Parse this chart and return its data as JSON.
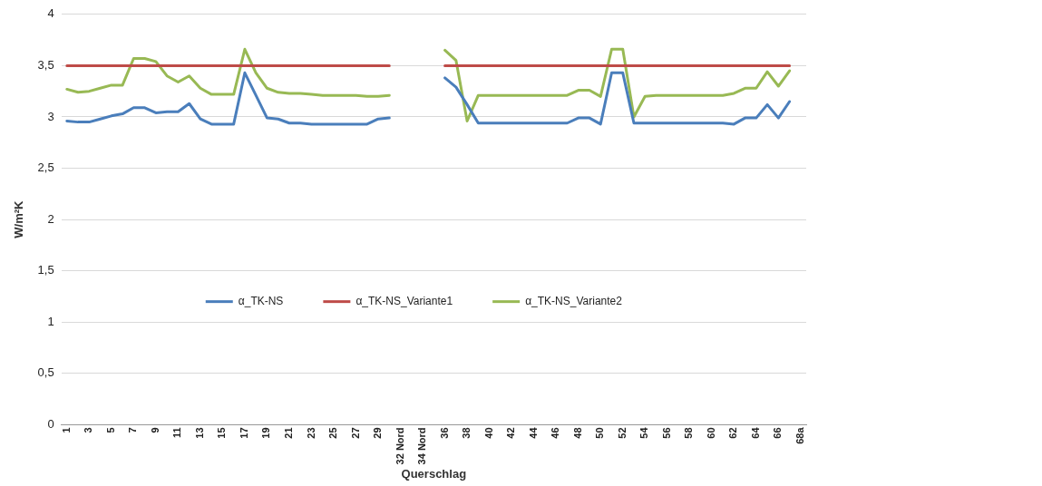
{
  "chart_data": {
    "type": "line",
    "xlabel": "Querschlag",
    "ylabel": "W/m²K",
    "categories": [
      "1",
      null,
      "3",
      null,
      "5",
      null,
      "7",
      null,
      "9",
      null,
      "11",
      null,
      "13",
      null,
      "15",
      null,
      "17",
      null,
      "19",
      null,
      "21",
      null,
      "23",
      null,
      "25",
      null,
      "27",
      null,
      "29",
      null,
      "32 Nord",
      null,
      "34 Nord",
      null,
      "36",
      null,
      "38",
      null,
      "40",
      null,
      "42",
      null,
      "44",
      null,
      "46",
      null,
      "48",
      null,
      "50",
      null,
      "52",
      null,
      "54",
      null,
      "56",
      null,
      "58",
      null,
      "60",
      null,
      "62",
      null,
      "64",
      null,
      "66",
      null,
      "68a"
    ],
    "series": [
      {
        "name": "α_TK-NS",
        "color": "#4a7ebb",
        "values": [
          2.96,
          2.95,
          2.95,
          2.98,
          3.01,
          3.03,
          3.09,
          3.09,
          3.04,
          3.05,
          3.05,
          3.13,
          2.98,
          2.93,
          2.93,
          2.93,
          3.43,
          3.21,
          2.99,
          2.98,
          2.94,
          2.94,
          2.93,
          2.93,
          2.93,
          2.93,
          2.93,
          2.93,
          2.98,
          2.99,
          null,
          null,
          null,
          null,
          3.38,
          3.29,
          3.12,
          2.94,
          2.94,
          2.94,
          2.94,
          2.94,
          2.94,
          2.94,
          2.94,
          2.94,
          2.99,
          2.99,
          2.93,
          3.43,
          3.43,
          2.94,
          2.94,
          2.94,
          2.94,
          2.94,
          2.94,
          2.94,
          2.94,
          2.94,
          2.93,
          2.99,
          2.99,
          3.12,
          2.99,
          3.15,
          null
        ]
      },
      {
        "name": "α_TK-NS_Variante1",
        "color": "#be4b48",
        "values": [
          3.5,
          3.5,
          3.5,
          3.5,
          3.5,
          3.5,
          3.5,
          3.5,
          3.5,
          3.5,
          3.5,
          3.5,
          3.5,
          3.5,
          3.5,
          3.5,
          3.5,
          3.5,
          3.5,
          3.5,
          3.5,
          3.5,
          3.5,
          3.5,
          3.5,
          3.5,
          3.5,
          3.5,
          3.5,
          3.5,
          null,
          null,
          null,
          null,
          3.5,
          3.5,
          3.5,
          3.5,
          3.5,
          3.5,
          3.5,
          3.5,
          3.5,
          3.5,
          3.5,
          3.5,
          3.5,
          3.5,
          3.5,
          3.5,
          3.5,
          3.5,
          3.5,
          3.5,
          3.5,
          3.5,
          3.5,
          3.5,
          3.5,
          3.5,
          3.5,
          3.5,
          3.5,
          3.5,
          3.5,
          3.5,
          null
        ]
      },
      {
        "name": "α_TK-NS_Variante2",
        "color": "#98b954",
        "values": [
          3.27,
          3.24,
          3.25,
          3.28,
          3.31,
          3.31,
          3.57,
          3.57,
          3.54,
          3.4,
          3.34,
          3.4,
          3.28,
          3.22,
          3.22,
          3.22,
          3.66,
          3.43,
          3.28,
          3.24,
          3.23,
          3.23,
          3.22,
          3.21,
          3.21,
          3.21,
          3.21,
          3.2,
          3.2,
          3.21,
          null,
          null,
          null,
          null,
          3.65,
          3.55,
          2.96,
          3.21,
          3.21,
          3.21,
          3.21,
          3.21,
          3.21,
          3.21,
          3.21,
          3.21,
          3.26,
          3.26,
          3.2,
          3.66,
          3.66,
          3.0,
          3.2,
          3.21,
          3.21,
          3.21,
          3.21,
          3.21,
          3.21,
          3.21,
          3.23,
          3.28,
          3.28,
          3.44,
          3.3,
          3.45,
          null
        ]
      }
    ],
    "ylim": [
      0,
      4
    ],
    "yticks": [
      0,
      {
        "value": 0.5,
        "label": "0,5"
      },
      1,
      {
        "value": 1.5,
        "label": "1,5"
      },
      2,
      {
        "value": 2.5,
        "label": "2,5"
      },
      3,
      {
        "value": 3.5,
        "label": "3,5"
      },
      4
    ],
    "grid": "y",
    "legend": "center",
    "marker": "none",
    "line_style": "solid"
  }
}
